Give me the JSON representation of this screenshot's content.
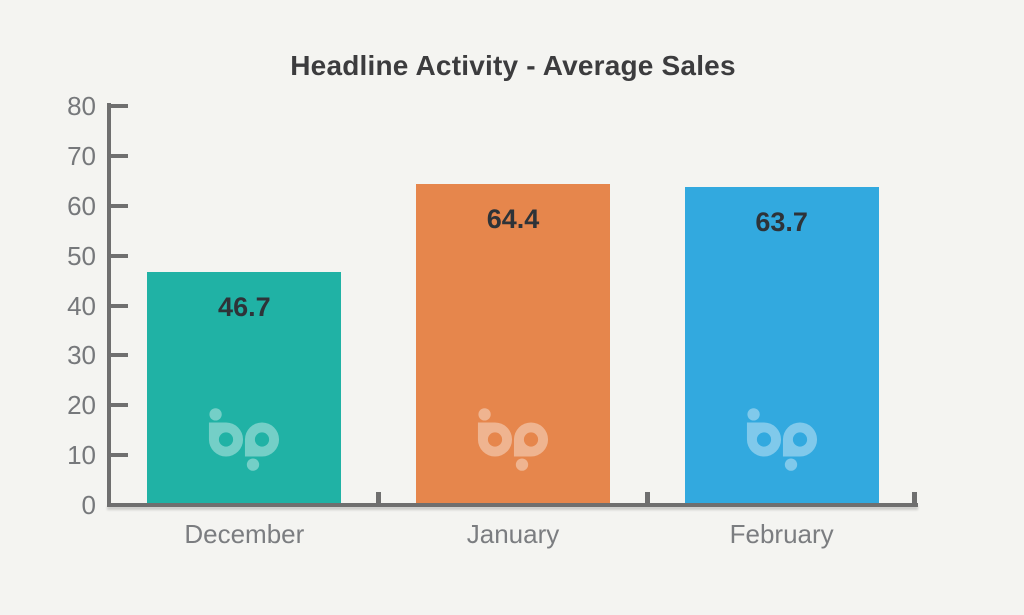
{
  "page": {
    "background_color": "#F4F4F1"
  },
  "chart_data": {
    "type": "bar",
    "title": "Headline Activity - Average Sales",
    "categories": [
      "December",
      "January",
      "February"
    ],
    "values": [
      46.7,
      64.4,
      63.7
    ],
    "value_labels": [
      "46.7",
      "64.4",
      "63.7"
    ],
    "bar_colors": [
      "#20B2A5",
      "#E6864C",
      "#32A9DF"
    ],
    "xlabel": "",
    "ylabel": "",
    "ylim": [
      0,
      80
    ],
    "yticks": [
      0,
      10,
      20,
      30,
      40,
      50,
      60,
      70,
      80
    ],
    "grid": false,
    "legend": false,
    "value_label_position": "inside-top",
    "watermark_icon": "bp-logo",
    "colors": {
      "axis": "#6F6F6F",
      "tick_label": "#76787B",
      "category_label": "#7B7D80",
      "title": "#3C3C3E",
      "value_label": "#2E3338",
      "watermark": "rgba(255,255,255,0.38)"
    }
  }
}
